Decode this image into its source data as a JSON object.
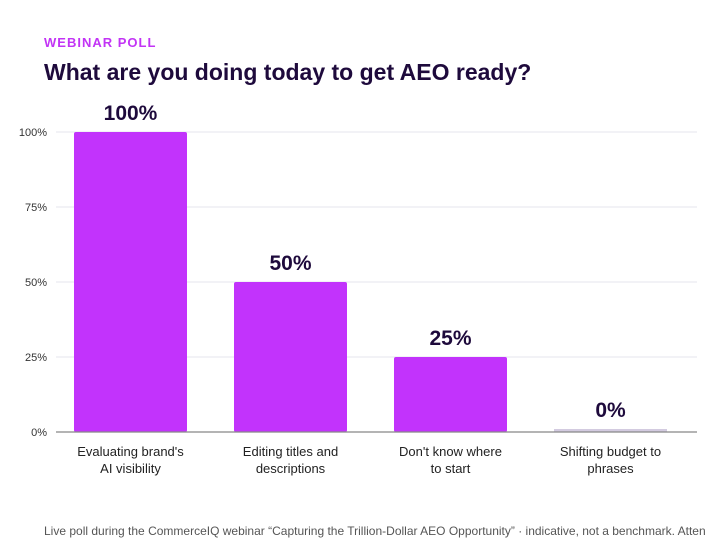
{
  "header": {
    "kicker": "WEBINAR POLL",
    "title": "What are you doing today to get AEO ready?"
  },
  "footnote": "Live poll during the CommerceIQ webinar “Capturing the Trillion-Dollar AEO Opportunity” · indicative, not a benchmark. Atten",
  "colors": {
    "bar": "#c233fc",
    "zero_bar": "#d3cbe0",
    "value_label": "#1e0a3c",
    "axis_text": "#333333",
    "grid": "#e6e6ee",
    "baseline": "#888888"
  },
  "chart_data": {
    "type": "bar",
    "title": "What are you doing today to get AEO ready?",
    "xlabel": "",
    "ylabel": "",
    "ylim": [
      0,
      100
    ],
    "yticks": [
      0,
      25,
      50,
      75,
      100
    ],
    "ytick_labels": [
      "0%",
      "25%",
      "50%",
      "75%",
      "100%"
    ],
    "grid": true,
    "categories": [
      [
        "Evaluating brand's",
        "AI visibility"
      ],
      [
        "Editing titles and",
        "descriptions"
      ],
      [
        "Don't know where",
        "to start"
      ],
      [
        "Shifting budget to",
        "phrases"
      ]
    ],
    "values": [
      100,
      50,
      25,
      0
    ],
    "value_labels": [
      "100%",
      "50%",
      "25%",
      "0%"
    ]
  }
}
